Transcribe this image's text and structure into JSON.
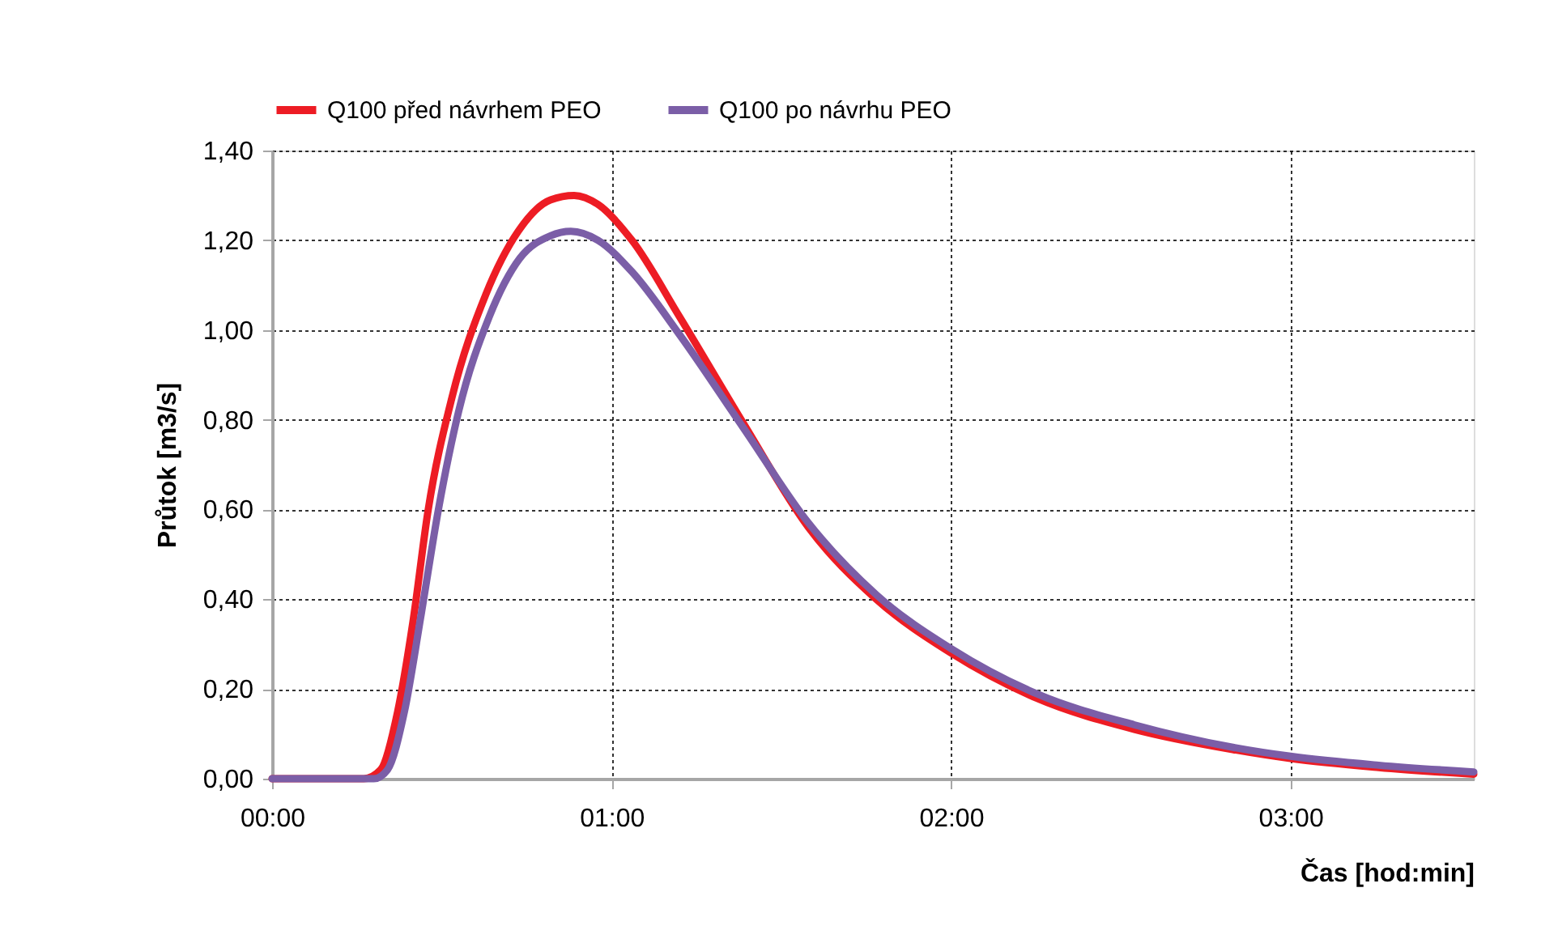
{
  "chart_data": {
    "type": "line",
    "xlabel": "Čas [hod:min]",
    "ylabel": "Průtok [m3/s]",
    "xlim": [
      0,
      3.54
    ],
    "ylim": [
      0,
      1.4
    ],
    "xticks": [
      {
        "value": 0,
        "label": "00:00"
      },
      {
        "value": 1,
        "label": "01:00"
      },
      {
        "value": 2,
        "label": "02:00"
      },
      {
        "value": 3,
        "label": "03:00"
      }
    ],
    "yticks": [
      {
        "value": 0,
        "label": "0,00"
      },
      {
        "value": 0.2,
        "label": "0,20"
      },
      {
        "value": 0.4,
        "label": "0,40"
      },
      {
        "value": 0.6,
        "label": "0,60"
      },
      {
        "value": 0.8,
        "label": "0,80"
      },
      {
        "value": 1.0,
        "label": "1,00"
      },
      {
        "value": 1.2,
        "label": "1,20"
      },
      {
        "value": 1.4,
        "label": "1,40"
      }
    ],
    "grid": true,
    "legend": "top",
    "marker": "none",
    "line_style": "solid",
    "series": [
      {
        "name": "Q100 před návrhem PEO",
        "color": "#ed1c24",
        "x": [
          0,
          0.27,
          0.32,
          0.37,
          0.415,
          0.46,
          0.53,
          0.63,
          0.725,
          0.82,
          0.89,
          0.96,
          1.06,
          1.2,
          1.39,
          1.58,
          1.78,
          2.0,
          2.25,
          2.54,
          2.83,
          3.0,
          3.26,
          3.54
        ],
        "values": [
          0,
          0,
          0.02,
          0.15,
          0.35,
          0.6,
          0.85,
          1.08,
          1.22,
          1.29,
          1.3,
          1.28,
          1.2,
          1.03,
          0.79,
          0.56,
          0.4,
          0.28,
          0.18,
          0.11,
          0.065,
          0.045,
          0.025,
          0.01
        ]
      },
      {
        "name": "Q100 po návrhu PEO",
        "color": "#7b5ea7",
        "x": [
          0,
          0.3,
          0.34,
          0.39,
          0.44,
          0.49,
          0.55,
          0.64,
          0.73,
          0.82,
          0.88,
          0.96,
          1.06,
          1.2,
          1.39,
          1.58,
          1.78,
          2.0,
          2.25,
          2.54,
          2.83,
          3.0,
          3.26,
          3.54
        ],
        "values": [
          0,
          0,
          0.02,
          0.15,
          0.37,
          0.6,
          0.82,
          1.03,
          1.16,
          1.21,
          1.22,
          1.2,
          1.13,
          0.99,
          0.78,
          0.57,
          0.41,
          0.29,
          0.19,
          0.12,
          0.07,
          0.05,
          0.03,
          0.015
        ]
      }
    ]
  }
}
